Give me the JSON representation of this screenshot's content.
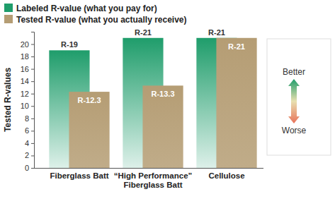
{
  "chart_data": {
    "type": "bar",
    "categories": [
      "Fiberglass Batt",
      "“High Performance” Fiberglass Batt",
      "Cellulose"
    ],
    "series": [
      {
        "name": "Labeled R-value (what you pay for)",
        "color": "#1f9d6b",
        "values": [
          19,
          21,
          21
        ],
        "value_labels": [
          "R-19",
          "R-21",
          "R-21"
        ]
      },
      {
        "name": "Tested R-value (what you actually receive)",
        "color": "#b59d74",
        "values": [
          12.3,
          13.3,
          21
        ],
        "value_labels": [
          "R-12.3",
          "R-13.3",
          "R-21"
        ]
      }
    ],
    "ylabel": "Tested R-values",
    "ylim": [
      0,
      22
    ],
    "yticks": [
      0,
      2,
      4,
      6,
      8,
      10,
      12,
      14,
      16,
      18,
      20
    ],
    "data_labels": true,
    "legend": "top-left",
    "grid": false,
    "annotations": [
      "Better",
      "Worse"
    ]
  }
}
